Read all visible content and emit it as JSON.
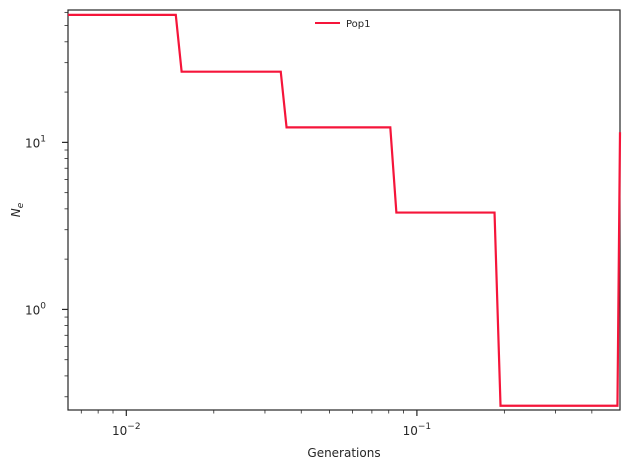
{
  "chart_data": {
    "type": "line",
    "xlabel": "Generations",
    "ylabel": "N",
    "ylabel_sub": "e",
    "xscale": "log",
    "yscale": "log",
    "xlim": [
      0.0063,
      0.5
    ],
    "ylim": [
      0.25,
      62
    ],
    "grid": false,
    "legend_position": "top-center",
    "xticks": [
      {
        "value": 0.01,
        "base": "10",
        "exp": "−2"
      },
      {
        "value": 0.1,
        "base": "10",
        "exp": "−1"
      }
    ],
    "yticks": [
      {
        "value": 1,
        "base": "10",
        "exp": "0"
      },
      {
        "value": 10,
        "base": "10",
        "exp": "1"
      }
    ],
    "series": [
      {
        "name": "Pop1",
        "color": "#f5153a",
        "x": [
          0.0063,
          0.0148,
          0.0155,
          0.034,
          0.0356,
          0.081,
          0.085,
          0.185,
          0.194,
          0.49,
          0.5
        ],
        "y": [
          58,
          58,
          26.5,
          26.5,
          12.3,
          12.3,
          3.8,
          3.8,
          0.265,
          0.265,
          11.5
        ]
      }
    ]
  }
}
